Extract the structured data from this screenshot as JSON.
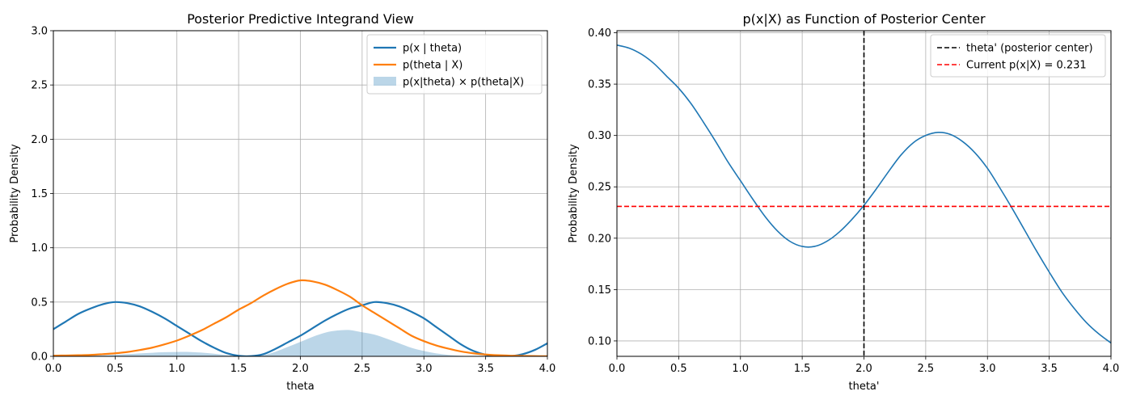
{
  "chart_data": [
    {
      "type": "line",
      "title": "Posterior Predictive Integrand View",
      "xlabel": "theta",
      "ylabel": "Probability Density",
      "xlim": [
        0,
        4
      ],
      "ylim": [
        0,
        3
      ],
      "xticks": [
        "0.0",
        "0.5",
        "1.0",
        "1.5",
        "2.0",
        "2.5",
        "3.0",
        "3.5",
        "4.0"
      ],
      "yticks": [
        "0.0",
        "0.5",
        "1.0",
        "1.5",
        "2.0",
        "2.5",
        "3.0"
      ],
      "grid": true,
      "legend_position": "upper right",
      "x": [
        0.0,
        0.1,
        0.2,
        0.3,
        0.4,
        0.5,
        0.6,
        0.7,
        0.8,
        0.9,
        1.0,
        1.1,
        1.2,
        1.3,
        1.4,
        1.5,
        1.6,
        1.7,
        1.8,
        1.9,
        2.0,
        2.1,
        2.2,
        2.3,
        2.4,
        2.5,
        2.6,
        2.7,
        2.8,
        2.9,
        3.0,
        3.1,
        3.2,
        3.3,
        3.4,
        3.5,
        3.6,
        3.7,
        3.8,
        3.9,
        4.0
      ],
      "series": [
        {
          "name": "p(x | theta)",
          "kind": "line",
          "color": "#1f77b4",
          "values": [
            0.25,
            0.32,
            0.39,
            0.44,
            0.48,
            0.5,
            0.49,
            0.46,
            0.41,
            0.35,
            0.28,
            0.21,
            0.14,
            0.08,
            0.03,
            0.005,
            0.002,
            0.02,
            0.07,
            0.13,
            0.19,
            0.26,
            0.33,
            0.39,
            0.44,
            0.47,
            0.5,
            0.49,
            0.46,
            0.41,
            0.35,
            0.27,
            0.19,
            0.11,
            0.05,
            0.015,
            0.002,
            0.002,
            0.02,
            0.06,
            0.12
          ]
        },
        {
          "name": "p(theta | X)",
          "kind": "line",
          "color": "#ff7f0e",
          "values": [
            0.006,
            0.008,
            0.01,
            0.013,
            0.02,
            0.028,
            0.04,
            0.058,
            0.08,
            0.11,
            0.145,
            0.19,
            0.24,
            0.3,
            0.36,
            0.43,
            0.49,
            0.56,
            0.62,
            0.67,
            0.7,
            0.69,
            0.66,
            0.61,
            0.55,
            0.47,
            0.4,
            0.33,
            0.26,
            0.19,
            0.14,
            0.1,
            0.07,
            0.045,
            0.028,
            0.017,
            0.01,
            0.006,
            0.004,
            0.002,
            0.001
          ]
        },
        {
          "name": "p(x|theta) × p(theta|X)",
          "kind": "area",
          "color": "#1f77b4",
          "opacity": 0.3,
          "values": [
            0.002,
            0.003,
            0.004,
            0.006,
            0.01,
            0.014,
            0.02,
            0.027,
            0.033,
            0.038,
            0.04,
            0.04,
            0.034,
            0.024,
            0.011,
            0.002,
            0.001,
            0.011,
            0.043,
            0.087,
            0.133,
            0.18,
            0.218,
            0.238,
            0.242,
            0.221,
            0.2,
            0.162,
            0.12,
            0.078,
            0.049,
            0.027,
            0.013,
            0.005,
            0.0014,
            0.0003,
            0.0,
            0.0,
            0.0,
            0.0,
            0.0
          ]
        }
      ]
    },
    {
      "type": "line",
      "title": "p(x|X) as Function of Posterior Center",
      "xlabel": "theta'",
      "ylabel": "Probability Density",
      "xlim": [
        0,
        4
      ],
      "ylim": [
        0.085,
        0.402
      ],
      "xticks": [
        "0.0",
        "0.5",
        "1.0",
        "1.5",
        "2.0",
        "2.5",
        "3.0",
        "3.5",
        "4.0"
      ],
      "yticks": [
        "0.10",
        "0.15",
        "0.20",
        "0.25",
        "0.30",
        "0.35",
        "0.40"
      ],
      "grid": true,
      "legend_position": "upper right",
      "x": [
        0.0,
        0.1,
        0.2,
        0.3,
        0.4,
        0.5,
        0.6,
        0.7,
        0.8,
        0.9,
        1.0,
        1.1,
        1.2,
        1.3,
        1.4,
        1.5,
        1.6,
        1.7,
        1.8,
        1.9,
        2.0,
        2.1,
        2.2,
        2.3,
        2.4,
        2.5,
        2.6,
        2.7,
        2.8,
        2.9,
        3.0,
        3.1,
        3.2,
        3.3,
        3.4,
        3.5,
        3.6,
        3.7,
        3.8,
        3.9,
        4.0
      ],
      "series": [
        {
          "name": "",
          "kind": "line",
          "color": "#1f77b4",
          "values": [
            0.388,
            0.385,
            0.379,
            0.37,
            0.358,
            0.346,
            0.331,
            0.313,
            0.294,
            0.274,
            0.256,
            0.238,
            0.221,
            0.207,
            0.197,
            0.192,
            0.192,
            0.197,
            0.206,
            0.218,
            0.232,
            0.248,
            0.265,
            0.281,
            0.293,
            0.3,
            0.303,
            0.301,
            0.294,
            0.283,
            0.268,
            0.249,
            0.229,
            0.208,
            0.187,
            0.167,
            0.148,
            0.132,
            0.118,
            0.107,
            0.098
          ]
        }
      ],
      "vline": {
        "x": 2.0,
        "label": "theta' (posterior center)",
        "color": "#000000"
      },
      "hline": {
        "y": 0.231,
        "label": "Current p(x|X) = 0.231",
        "color": "#ff0000"
      }
    }
  ]
}
